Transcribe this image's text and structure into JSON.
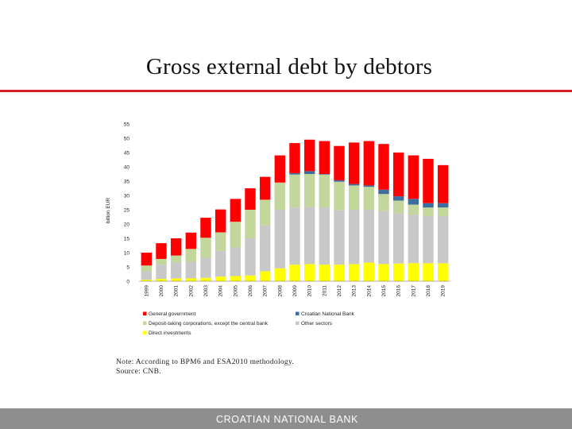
{
  "slide": {
    "title": "Gross external debt by debtors",
    "note": "Note: According to BPM6 and ESA2010 methodology.",
    "source": "Source: CNB.",
    "footer": "CROATIAN NATIONAL BANK"
  },
  "chart_data": {
    "type": "bar",
    "stacked": true,
    "ylabel": "billion EUR",
    "ylim": [
      0,
      55
    ],
    "yticks": [
      0,
      5,
      10,
      15,
      20,
      25,
      30,
      35,
      40,
      45,
      50,
      55
    ],
    "grid": false,
    "legend_position": "bottom",
    "categories": [
      "1999",
      "2000",
      "2001",
      "2002",
      "2003",
      "2004",
      "2005",
      "2006",
      "2007",
      "2008",
      "2009",
      "2010",
      "2011",
      "2012",
      "2013",
      "2014",
      "2015",
      "2016",
      "2017",
      "2018",
      "2019"
    ],
    "series": [
      {
        "name": "Direct investments",
        "color": "#ffff00",
        "values": [
          0.5,
          0.8,
          1.0,
          1.0,
          1.2,
          1.6,
          1.8,
          2.0,
          3.5,
          4.5,
          5.8,
          6.0,
          5.8,
          5.8,
          6.0,
          6.5,
          6.0,
          6.2,
          6.3,
          6.3,
          6.3
        ]
      },
      {
        "name": "Other sectors",
        "color": "#c8c8c8",
        "values": [
          3.0,
          5.0,
          5.5,
          5.8,
          7.0,
          9.0,
          10.0,
          13.0,
          16.0,
          20.5,
          20.0,
          20.0,
          20.0,
          19.0,
          19.0,
          18.5,
          18.5,
          17.5,
          17.0,
          16.5,
          16.5
        ]
      },
      {
        "name": "Deposit-taking corporations, except the central bank",
        "color": "#c3d69b",
        "values": [
          2.0,
          2.0,
          2.5,
          4.5,
          7.0,
          6.5,
          9.0,
          10.0,
          9.0,
          9.5,
          11.5,
          11.5,
          11.5,
          10.0,
          8.5,
          8.0,
          6.0,
          4.5,
          3.5,
          3.0,
          3.0
        ]
      },
      {
        "name": "Croatian National Bank",
        "color": "#3b6e9e",
        "values": [
          0.0,
          0.0,
          0.0,
          0.0,
          0.0,
          0.0,
          0.0,
          0.0,
          0.0,
          0.0,
          0.5,
          1.0,
          0.2,
          0.5,
          0.5,
          0.5,
          1.5,
          1.5,
          2.0,
          1.5,
          1.5
        ]
      },
      {
        "name": "General government",
        "color": "#ff0000",
        "values": [
          4.5,
          5.5,
          6.0,
          5.7,
          7.0,
          8.0,
          8.0,
          7.5,
          8.0,
          9.5,
          10.5,
          11.0,
          11.5,
          12.0,
          14.5,
          15.5,
          16.0,
          15.3,
          15.2,
          15.5,
          13.3
        ]
      }
    ],
    "legend_order": [
      "General government",
      "Croatian National Bank",
      "Deposit-taking corporations, except the central bank",
      "Other sectors",
      "Direct investments"
    ]
  }
}
